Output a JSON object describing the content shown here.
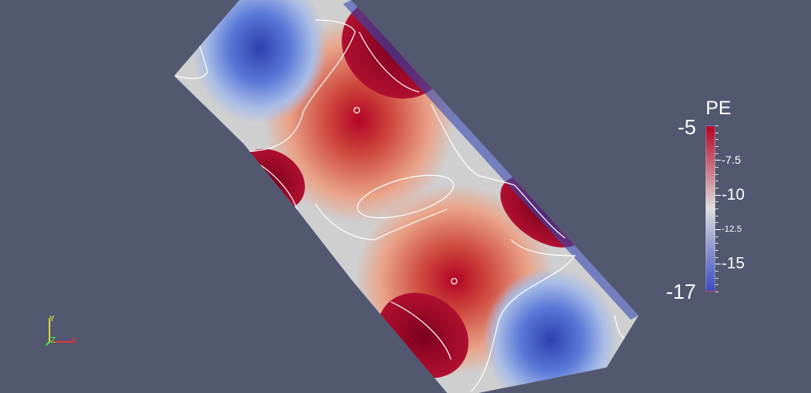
{
  "colorbar": {
    "title": "PE",
    "max_label": "-5",
    "min_label": "-17",
    "min": -17,
    "max": -5,
    "ticks": [
      {
        "value": -7.5,
        "label": "-7.5"
      },
      {
        "value": -10,
        "label": "-10"
      },
      {
        "value": -12.5,
        "label": "-12.5"
      },
      {
        "value": -15,
        "label": "-15"
      }
    ],
    "colors": {
      "low": "#3b4cc0",
      "mid": "#dddddd",
      "high": "#b40426"
    }
  },
  "orientation_axes": {
    "x_label": "X",
    "y_label": "Y",
    "z_label": "Z",
    "x_color": "#ff3030",
    "y_color": "#ffff30",
    "z_color": "#30ff30"
  },
  "background_color": "#525870"
}
